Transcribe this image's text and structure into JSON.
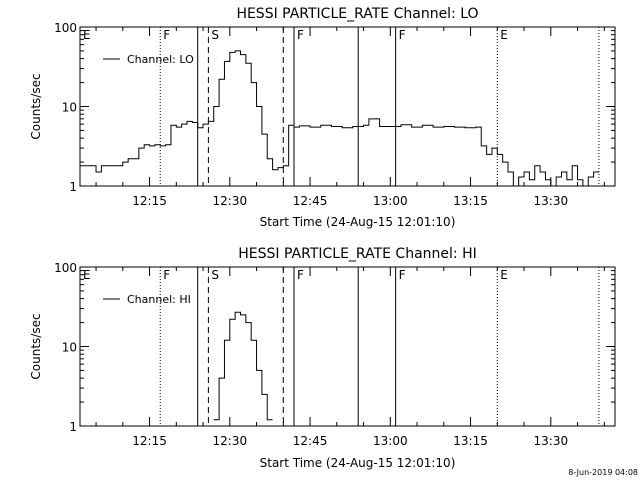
{
  "footer": {
    "date_stamp": "8-Jun-2019 04:08"
  },
  "chart_data": [
    {
      "type": "line",
      "title": "HESSI PARTICLE_RATE Channel: LO",
      "xlabel": "Start Time (24-Aug-15 12:01:10)",
      "ylabel": "Counts/sec",
      "yscale": "log",
      "grid": false,
      "legend_position": "top-left",
      "xlim": [
        "12:02",
        "13:42"
      ],
      "ylim": [
        1,
        100
      ],
      "x_ticks": [
        "12:15",
        "12:30",
        "12:45",
        "13:00",
        "13:15",
        "13:30"
      ],
      "y_ticks": [
        "1",
        "10",
        "100"
      ],
      "series": [
        {
          "name": "Channel: LO",
          "x": [
            "12:02",
            "12:04",
            "12:05",
            "12:06",
            "12:07",
            "12:09",
            "12:10",
            "12:11",
            "12:12",
            "12:13",
            "12:14",
            "12:15",
            "12:16",
            "12:17",
            "12:18",
            "12:19",
            "12:20",
            "12:21",
            "12:22",
            "12:23",
            "12:24",
            "12:25",
            "12:26",
            "12:27",
            "12:28",
            "12:29",
            "12:30",
            "12:31",
            "12:32",
            "12:33",
            "12:34",
            "12:35",
            "12:36",
            "12:37",
            "12:38",
            "12:39",
            "12:40",
            "12:41",
            "12:42",
            "12:43",
            "12:45",
            "12:47",
            "12:49",
            "12:51",
            "12:53",
            "12:55",
            "12:56",
            "12:58",
            "13:00",
            "13:02",
            "13:04",
            "13:06",
            "13:08",
            "13:10",
            "13:12",
            "13:14",
            "13:16",
            "13:17",
            "13:18",
            "13:19",
            "13:20",
            "13:21",
            "13:22",
            "13:23",
            "13:24",
            "13:25",
            "13:26",
            "13:27",
            "13:28",
            "13:29",
            "13:30",
            "13:31",
            "13:32",
            "13:33",
            "13:34",
            "13:35",
            "13:36",
            "13:37",
            "13:38"
          ],
          "values": [
            1.8,
            1.8,
            1.5,
            1.8,
            1.8,
            1.8,
            2.0,
            2.2,
            2.2,
            3.0,
            3.3,
            3.2,
            3.3,
            3.2,
            3.3,
            5.8,
            5.5,
            6.0,
            6.5,
            6.3,
            5.4,
            6.0,
            6.5,
            10,
            22,
            37,
            48,
            50,
            45,
            35,
            20,
            10,
            4.5,
            2.2,
            1.6,
            1.7,
            1.8,
            5.8,
            5.5,
            5.7,
            5.5,
            5.8,
            5.6,
            5.4,
            5.6,
            5.8,
            7.0,
            5.6,
            5.6,
            5.9,
            5.5,
            5.8,
            5.5,
            5.6,
            5.5,
            5.4,
            5.5,
            3.2,
            2.5,
            3.0,
            2.5,
            2.0,
            1.5,
            1.0,
            1.3,
            1.5,
            1.2,
            1.8,
            1.5,
            1.2,
            1.0,
            1.3,
            1.5,
            1.2,
            1.8,
            1.2,
            1.0,
            1.3,
            1.5
          ]
        }
      ],
      "annotations": [
        {
          "label": "E",
          "x": "12:02",
          "style": "solid"
        },
        {
          "label": "F",
          "x": "12:17",
          "style": "dotted"
        },
        {
          "label": "",
          "x": "12:24",
          "style": "solid"
        },
        {
          "label": "S",
          "x": "12:26",
          "style": "dashed"
        },
        {
          "label": "",
          "x": "12:40",
          "style": "dashed"
        },
        {
          "label": "F",
          "x": "12:42",
          "style": "solid"
        },
        {
          "label": "",
          "x": "12:54",
          "style": "solid"
        },
        {
          "label": "F",
          "x": "13:01",
          "style": "solid"
        },
        {
          "label": "E",
          "x": "13:20",
          "style": "dotted"
        },
        {
          "label": "",
          "x": "13:39",
          "style": "dotted"
        }
      ]
    },
    {
      "type": "line",
      "title": "HESSI PARTICLE_RATE Channel: HI",
      "xlabel": "Start Time (24-Aug-15 12:01:10)",
      "ylabel": "Counts/sec",
      "yscale": "log",
      "grid": false,
      "legend_position": "top-left",
      "xlim": [
        "12:02",
        "13:42"
      ],
      "ylim": [
        1,
        100
      ],
      "x_ticks": [
        "12:15",
        "12:30",
        "12:45",
        "13:00",
        "13:15",
        "13:30"
      ],
      "y_ticks": [
        "1",
        "10",
        "100"
      ],
      "series": [
        {
          "name": "Channel: HI",
          "x": [
            "12:27",
            "12:28",
            "12:29",
            "12:30",
            "12:31",
            "12:32",
            "12:33",
            "12:34",
            "12:35",
            "12:36",
            "12:37"
          ],
          "values": [
            1.2,
            4.0,
            12,
            22,
            27,
            25,
            20,
            12,
            5.0,
            2.5,
            1.2
          ]
        }
      ],
      "annotations": [
        {
          "label": "E",
          "x": "12:02",
          "style": "solid"
        },
        {
          "label": "F",
          "x": "12:17",
          "style": "dotted"
        },
        {
          "label": "",
          "x": "12:24",
          "style": "solid"
        },
        {
          "label": "S",
          "x": "12:26",
          "style": "dashed"
        },
        {
          "label": "",
          "x": "12:40",
          "style": "dashed"
        },
        {
          "label": "F",
          "x": "12:42",
          "style": "solid"
        },
        {
          "label": "",
          "x": "12:54",
          "style": "solid"
        },
        {
          "label": "F",
          "x": "13:01",
          "style": "solid"
        },
        {
          "label": "E",
          "x": "13:20",
          "style": "dotted"
        },
        {
          "label": "",
          "x": "13:39",
          "style": "dotted"
        }
      ]
    }
  ]
}
